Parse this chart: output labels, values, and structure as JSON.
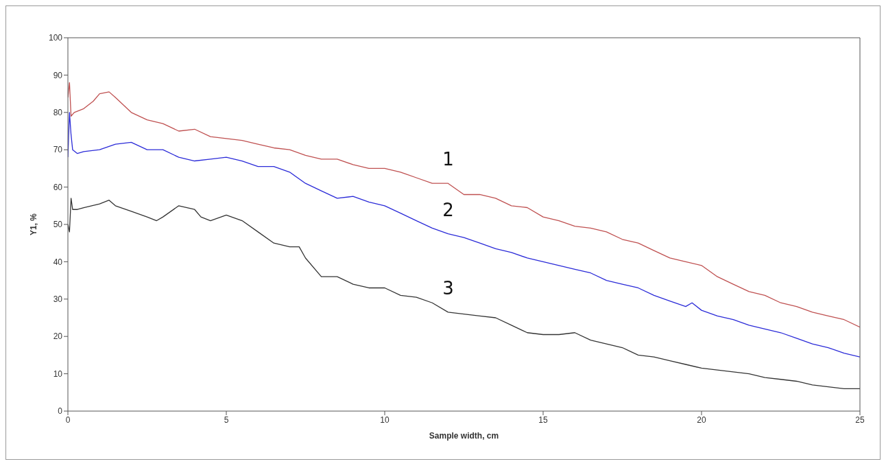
{
  "chart_data": {
    "type": "line",
    "xlabel": "Sample width, cm",
    "ylabel": "Y1, %",
    "xlim": [
      0,
      25
    ],
    "xticks": [
      0,
      5,
      10,
      15,
      20,
      25
    ],
    "ylim": [
      0,
      100
    ],
    "yticks": [
      0,
      10,
      20,
      30,
      40,
      50,
      60,
      70,
      80,
      90,
      100
    ],
    "grid": false,
    "legend": false,
    "marker": "none",
    "line_style": "solid",
    "series": [
      {
        "name": "1",
        "color": "#bf5050",
        "x": [
          0,
          0.05,
          0.1,
          0.2,
          0.5,
          0.8,
          1,
          1.3,
          1.5,
          2,
          2.5,
          3,
          3.5,
          4,
          4.5,
          5,
          5.5,
          6,
          6.5,
          7,
          7.5,
          8,
          8.5,
          9,
          9.5,
          10,
          10.5,
          11,
          11.5,
          12,
          12.5,
          13,
          13.5,
          14,
          14.5,
          15,
          15.5,
          16,
          16.5,
          17,
          17.5,
          18,
          18.5,
          19,
          19.5,
          20,
          20.5,
          21,
          21.5,
          22,
          22.5,
          23,
          23.5,
          24,
          24.5,
          25
        ],
        "values": [
          84,
          88,
          79,
          80,
          81,
          83,
          85,
          85.5,
          84,
          80,
          78,
          77,
          75,
          75.5,
          73.5,
          73,
          72.5,
          71.5,
          70.5,
          70,
          68.5,
          67.5,
          67.5,
          66,
          65,
          65,
          64,
          62.5,
          61,
          61,
          58,
          58,
          57,
          55,
          54.5,
          52,
          51,
          49.5,
          49,
          48,
          46,
          45,
          43,
          41,
          40,
          39,
          36,
          34,
          32,
          31,
          29,
          28,
          26.5,
          25.5,
          24.5,
          22.5
        ]
      },
      {
        "name": "2",
        "color": "#2a2ad8",
        "x": [
          0,
          0.05,
          0.1,
          0.15,
          0.3,
          0.5,
          1,
          1.5,
          2,
          2.5,
          3,
          3.5,
          4,
          4.5,
          5,
          5.5,
          6,
          6.5,
          7,
          7.5,
          8,
          8.5,
          9,
          9.5,
          10,
          10.5,
          11,
          11.5,
          12,
          12.5,
          13,
          13.5,
          14,
          14.5,
          15,
          15.5,
          16,
          16.5,
          17,
          17.5,
          18,
          18.5,
          19,
          19.5,
          19.7,
          20,
          20.5,
          21,
          21.5,
          22,
          22.5,
          23,
          23.5,
          24,
          24.5,
          25
        ],
        "values": [
          68,
          80,
          74,
          70,
          69,
          69.5,
          70,
          71.5,
          72,
          70,
          70,
          68,
          67,
          67.5,
          68,
          67,
          65.5,
          65.5,
          64,
          61,
          59,
          57,
          57.5,
          56,
          55,
          53,
          51,
          49,
          47.5,
          46.5,
          45,
          43.5,
          42.5,
          41,
          40,
          39,
          38,
          37,
          35,
          34,
          33,
          31,
          29.5,
          28,
          29,
          27,
          25.5,
          24.5,
          23,
          22,
          21,
          19.5,
          18,
          17,
          15.5,
          14.5
        ]
      },
      {
        "name": "3",
        "color": "#333333",
        "x": [
          0,
          0.05,
          0.1,
          0.15,
          0.3,
          0.5,
          1,
          1.3,
          1.5,
          2,
          2.5,
          2.8,
          3,
          3.5,
          4,
          4.2,
          4.5,
          5,
          5.5,
          6,
          6.5,
          7,
          7.3,
          7.5,
          8,
          8.5,
          9,
          9.5,
          10,
          10.5,
          11,
          11.5,
          12,
          12.5,
          13,
          13.5,
          14,
          14.5,
          15,
          15.5,
          16,
          16.5,
          17,
          17.5,
          18,
          18.5,
          19,
          19.5,
          20,
          20.5,
          21,
          21.5,
          22,
          22.5,
          23,
          23.5,
          24,
          24.5,
          25
        ],
        "values": [
          50,
          48,
          57,
          54,
          54,
          54.5,
          55.5,
          56.5,
          55,
          53.5,
          52,
          51,
          52,
          55,
          54,
          52,
          51,
          52.5,
          51,
          48,
          45,
          44,
          44,
          41,
          36,
          36,
          34,
          33,
          33,
          31,
          30.5,
          29,
          26.5,
          26,
          25.5,
          25,
          23,
          21,
          20.5,
          20.5,
          21,
          19,
          18,
          17,
          15,
          14.5,
          13.5,
          12.5,
          11.5,
          11,
          10.5,
          10,
          9,
          8.5,
          8,
          7,
          6.5,
          6,
          6
        ]
      }
    ]
  }
}
